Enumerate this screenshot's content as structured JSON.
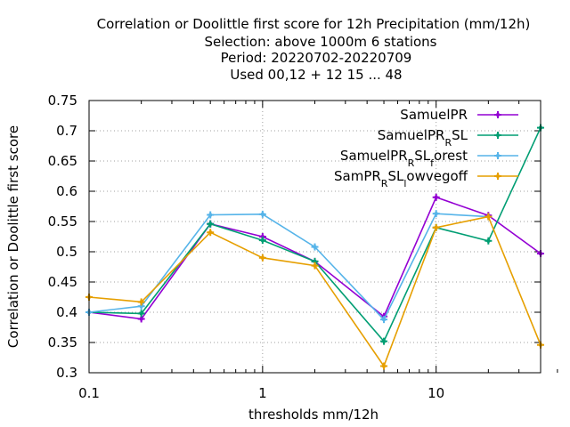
{
  "chart_data": {
    "type": "line",
    "title_lines": [
      "Correlation or Doolittle first score  for 12h Precipitation (mm/12h)",
      "Selection: above 1000m      6 stations",
      "Period: 20220702-20220709",
      "Used  00,12  + 12 15 ... 48"
    ],
    "xlabel": "thresholds mm/12h",
    "ylabel": "Correlation or Doolittle first score",
    "x_scale": "log",
    "xlim": [
      0.1,
      40
    ],
    "ylim": [
      0.3,
      0.75
    ],
    "x_ticks": [
      {
        "value": 0.1,
        "label": "0.1"
      },
      {
        "value": 1,
        "label": "1"
      },
      {
        "value": 10,
        "label": "10"
      }
    ],
    "y_ticks": [
      {
        "value": 0.3,
        "label": "0.3"
      },
      {
        "value": 0.35,
        "label": "0.35"
      },
      {
        "value": 0.4,
        "label": "0.4"
      },
      {
        "value": 0.45,
        "label": "0.45"
      },
      {
        "value": 0.5,
        "label": "0.5"
      },
      {
        "value": 0.55,
        "label": "0.55"
      },
      {
        "value": 0.6,
        "label": "0.6"
      },
      {
        "value": 0.65,
        "label": "0.65"
      },
      {
        "value": 0.7,
        "label": "0.7"
      },
      {
        "value": 0.75,
        "label": "0.75"
      }
    ],
    "grid": true,
    "legend_position": "top-right",
    "x": [
      0.1,
      0.2,
      0.5,
      1,
      2,
      5,
      10,
      20,
      40
    ],
    "series": [
      {
        "name": "SamuelPR",
        "color": "#9400d3",
        "values": [
          0.4,
          0.389,
          0.546,
          0.525,
          0.484,
          0.393,
          0.59,
          0.56,
          0.497
        ]
      },
      {
        "name": "SamuelPR_RSL",
        "color": "#009e73",
        "values": [
          0.4,
          0.398,
          0.546,
          0.519,
          0.484,
          0.352,
          0.54,
          0.518,
          0.705
        ]
      },
      {
        "name": "SamuelPR_RSL_forest",
        "color": "#56b4e9",
        "values": [
          0.4,
          0.41,
          0.561,
          0.562,
          0.508,
          0.388,
          0.563,
          0.558,
          null
        ]
      },
      {
        "name": "SamPR_RSL_lowvegoff",
        "color": "#e69f00",
        "values": [
          0.425,
          0.417,
          0.532,
          0.49,
          0.477,
          0.311,
          0.54,
          0.558,
          0.346
        ]
      }
    ]
  }
}
